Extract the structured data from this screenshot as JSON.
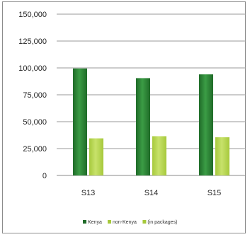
{
  "chart_data": {
    "type": "bar",
    "categories": [
      "S13",
      "S14",
      "S15"
    ],
    "series": [
      {
        "name": "Kenya",
        "values": [
          99500,
          90500,
          94000
        ],
        "color": "#1f6b28"
      },
      {
        "name": "non-Kenya",
        "values": [
          34500,
          36500,
          35500
        ],
        "color": "#a6c93c"
      },
      {
        "name": "Kenya (in packages)",
        "values": [
          0,
          0,
          0
        ],
        "color": "#a6c93c"
      }
    ],
    "ylim": [
      0,
      150000
    ],
    "yticks": [
      0,
      25000,
      50000,
      75000,
      100000,
      125000,
      150000
    ],
    "ytick_labels": [
      "0",
      "25,000",
      "50,000",
      "75,000",
      "100,000",
      "125,000",
      "150,000"
    ],
    "grid": true,
    "legend_position": "bottom",
    "legend_labels": [
      "Kenya",
      "non-Kenya",
      "(in packages)"
    ],
    "title": "",
    "xlabel": "",
    "ylabel": ""
  }
}
